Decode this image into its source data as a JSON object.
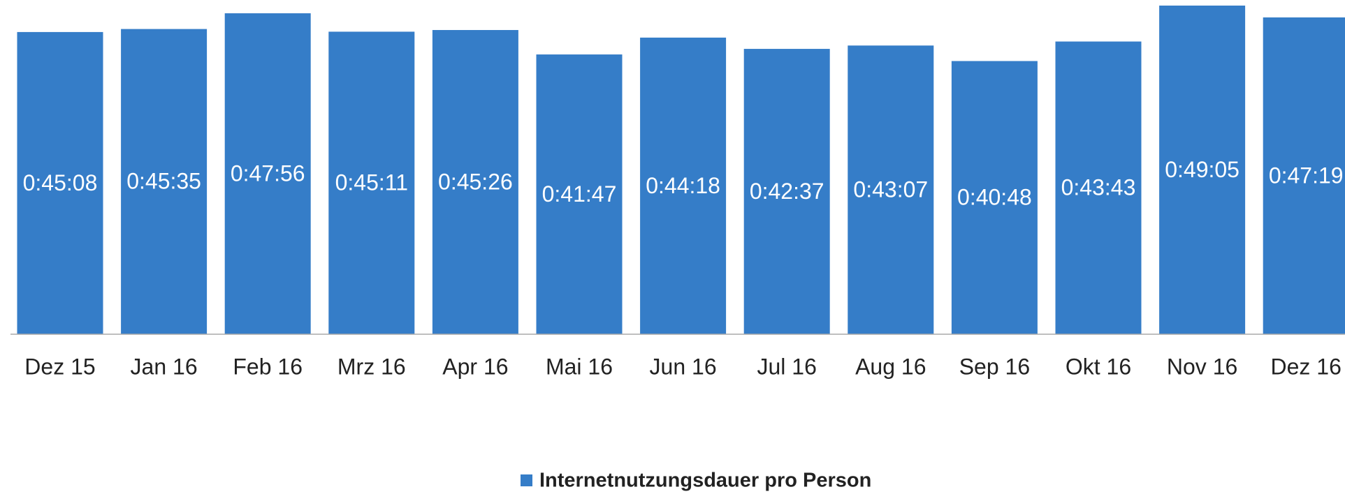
{
  "chart_data": {
    "type": "bar",
    "categories": [
      "Dez 15",
      "Jan 16",
      "Feb 16",
      "Mrz 16",
      "Apr 16",
      "Mai 16",
      "Jun 16",
      "Jul 16",
      "Aug 16",
      "Sep 16",
      "Okt 16",
      "Nov 16",
      "Dez 16"
    ],
    "series": [
      {
        "name": "Internetnutzungsdauer pro Person",
        "color": "#357dc8",
        "values": [
          2708,
          2735,
          2876,
          2711,
          2726,
          2507,
          2658,
          2557,
          2587,
          2448,
          2623,
          2945,
          2839
        ],
        "value_labels": [
          "0:45:08",
          "0:45:35",
          "0:47:56",
          "0:45:11",
          "0:45:26",
          "0:41:47",
          "0:44:18",
          "0:42:37",
          "0:43:07",
          "0:40:48",
          "0:43:43",
          "0:49:05",
          "0:47:19"
        ]
      }
    ],
    "legend": "bottom"
  }
}
